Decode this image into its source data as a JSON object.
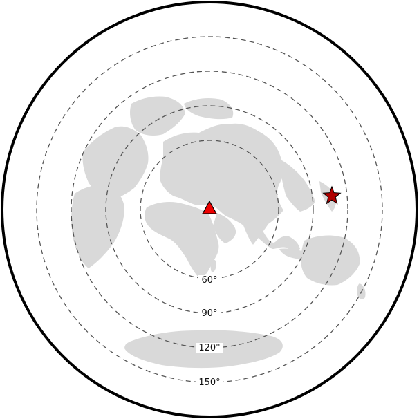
{
  "map": {
    "projection": "azimuthal-equidistant",
    "colors": {
      "land": "#d9d9d9",
      "rings": "#555555",
      "frame": "#000000",
      "station": "#ee0000",
      "epicenter": "#b00000"
    },
    "distance_rings": [
      {
        "label": "60°"
      },
      {
        "label": "90°"
      },
      {
        "label": "120°"
      },
      {
        "label": "150°"
      }
    ],
    "markers": {
      "station": {
        "symbol": "triangle-icon"
      },
      "epicenter": {
        "symbol": "star-icon"
      }
    }
  }
}
